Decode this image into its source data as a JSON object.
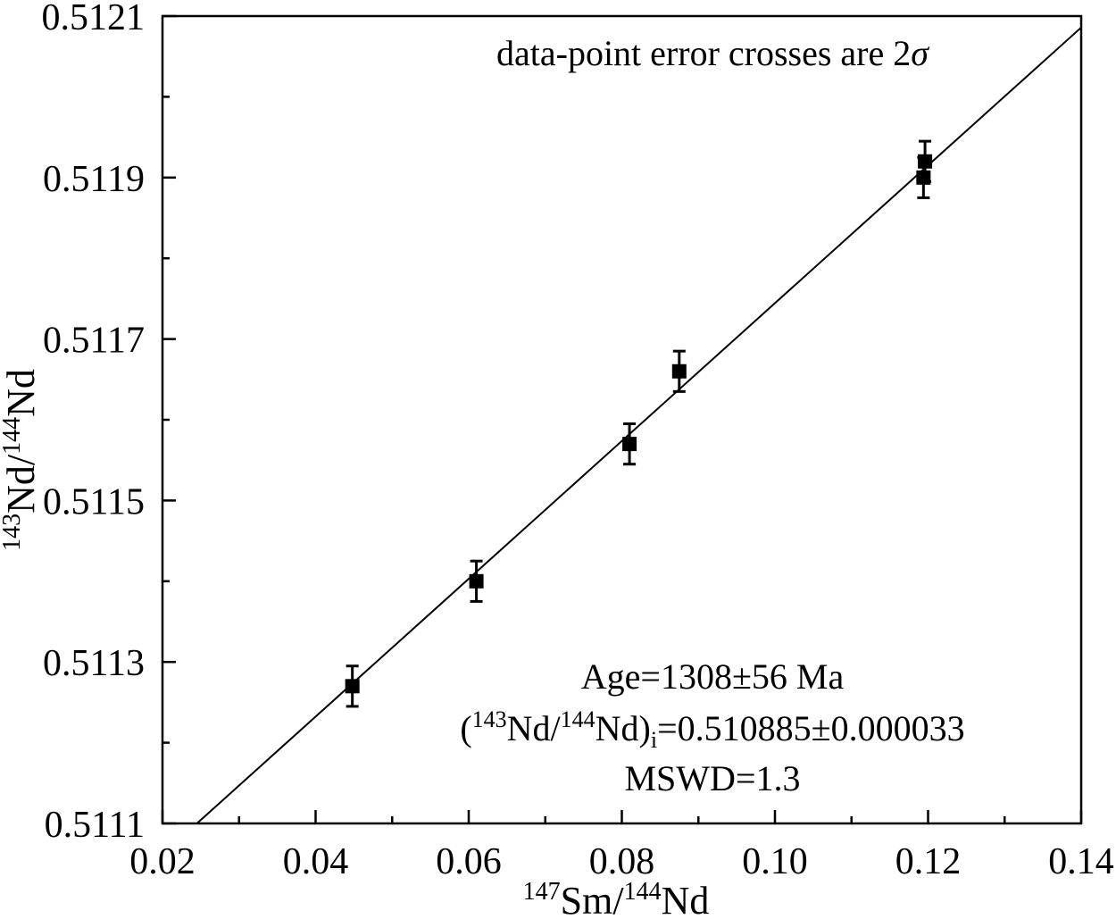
{
  "chart_data": {
    "type": "scatter",
    "xlim": [
      0.02,
      0.14
    ],
    "ylim": [
      0.5111,
      0.5121
    ],
    "x_ticks": [
      "0.02",
      "0.04",
      "0.06",
      "0.08",
      "0.10",
      "0.12",
      "0.14"
    ],
    "y_ticks": [
      "0.5111",
      "0.5113",
      "0.5115",
      "0.5117",
      "0.5119",
      "0.5121"
    ],
    "xlabel": {
      "sup1": "147",
      "main1": "Sm/",
      "sup2": "144",
      "main2": "Nd"
    },
    "ylabel": {
      "sup1": "143",
      "main1": "Nd/",
      "sup2": "144",
      "main2": "Nd"
    },
    "points": [
      {
        "x": 0.0448,
        "y": 0.51127,
        "err": 2.5e-05
      },
      {
        "x": 0.061,
        "y": 0.5114,
        "err": 2.5e-05
      },
      {
        "x": 0.081,
        "y": 0.51157,
        "err": 2.5e-05
      },
      {
        "x": 0.0875,
        "y": 0.51166,
        "err": 2.5e-05
      },
      {
        "x": 0.1194,
        "y": 0.5119,
        "err": 2.5e-05
      },
      {
        "x": 0.1196,
        "y": 0.51192,
        "err": 2.5e-05
      }
    ],
    "isochron": {
      "x": [
        0.0245,
        0.1399
      ],
      "y": [
        0.5111,
        0.512085
      ]
    },
    "grid": false,
    "annotations": {
      "note_main": "data-point error crosses are 2",
      "note_sigma": "σ",
      "age": "Age=1308±56 Ma",
      "initial_prefix": "(",
      "initial_sup1": "143",
      "initial_mid": "Nd/",
      "initial_sup2": "144",
      "initial_nd": "Nd)",
      "initial_sub": "i",
      "initial_value": "=0.510885±0.000033",
      "mswd": "MSWD=1.3"
    }
  }
}
